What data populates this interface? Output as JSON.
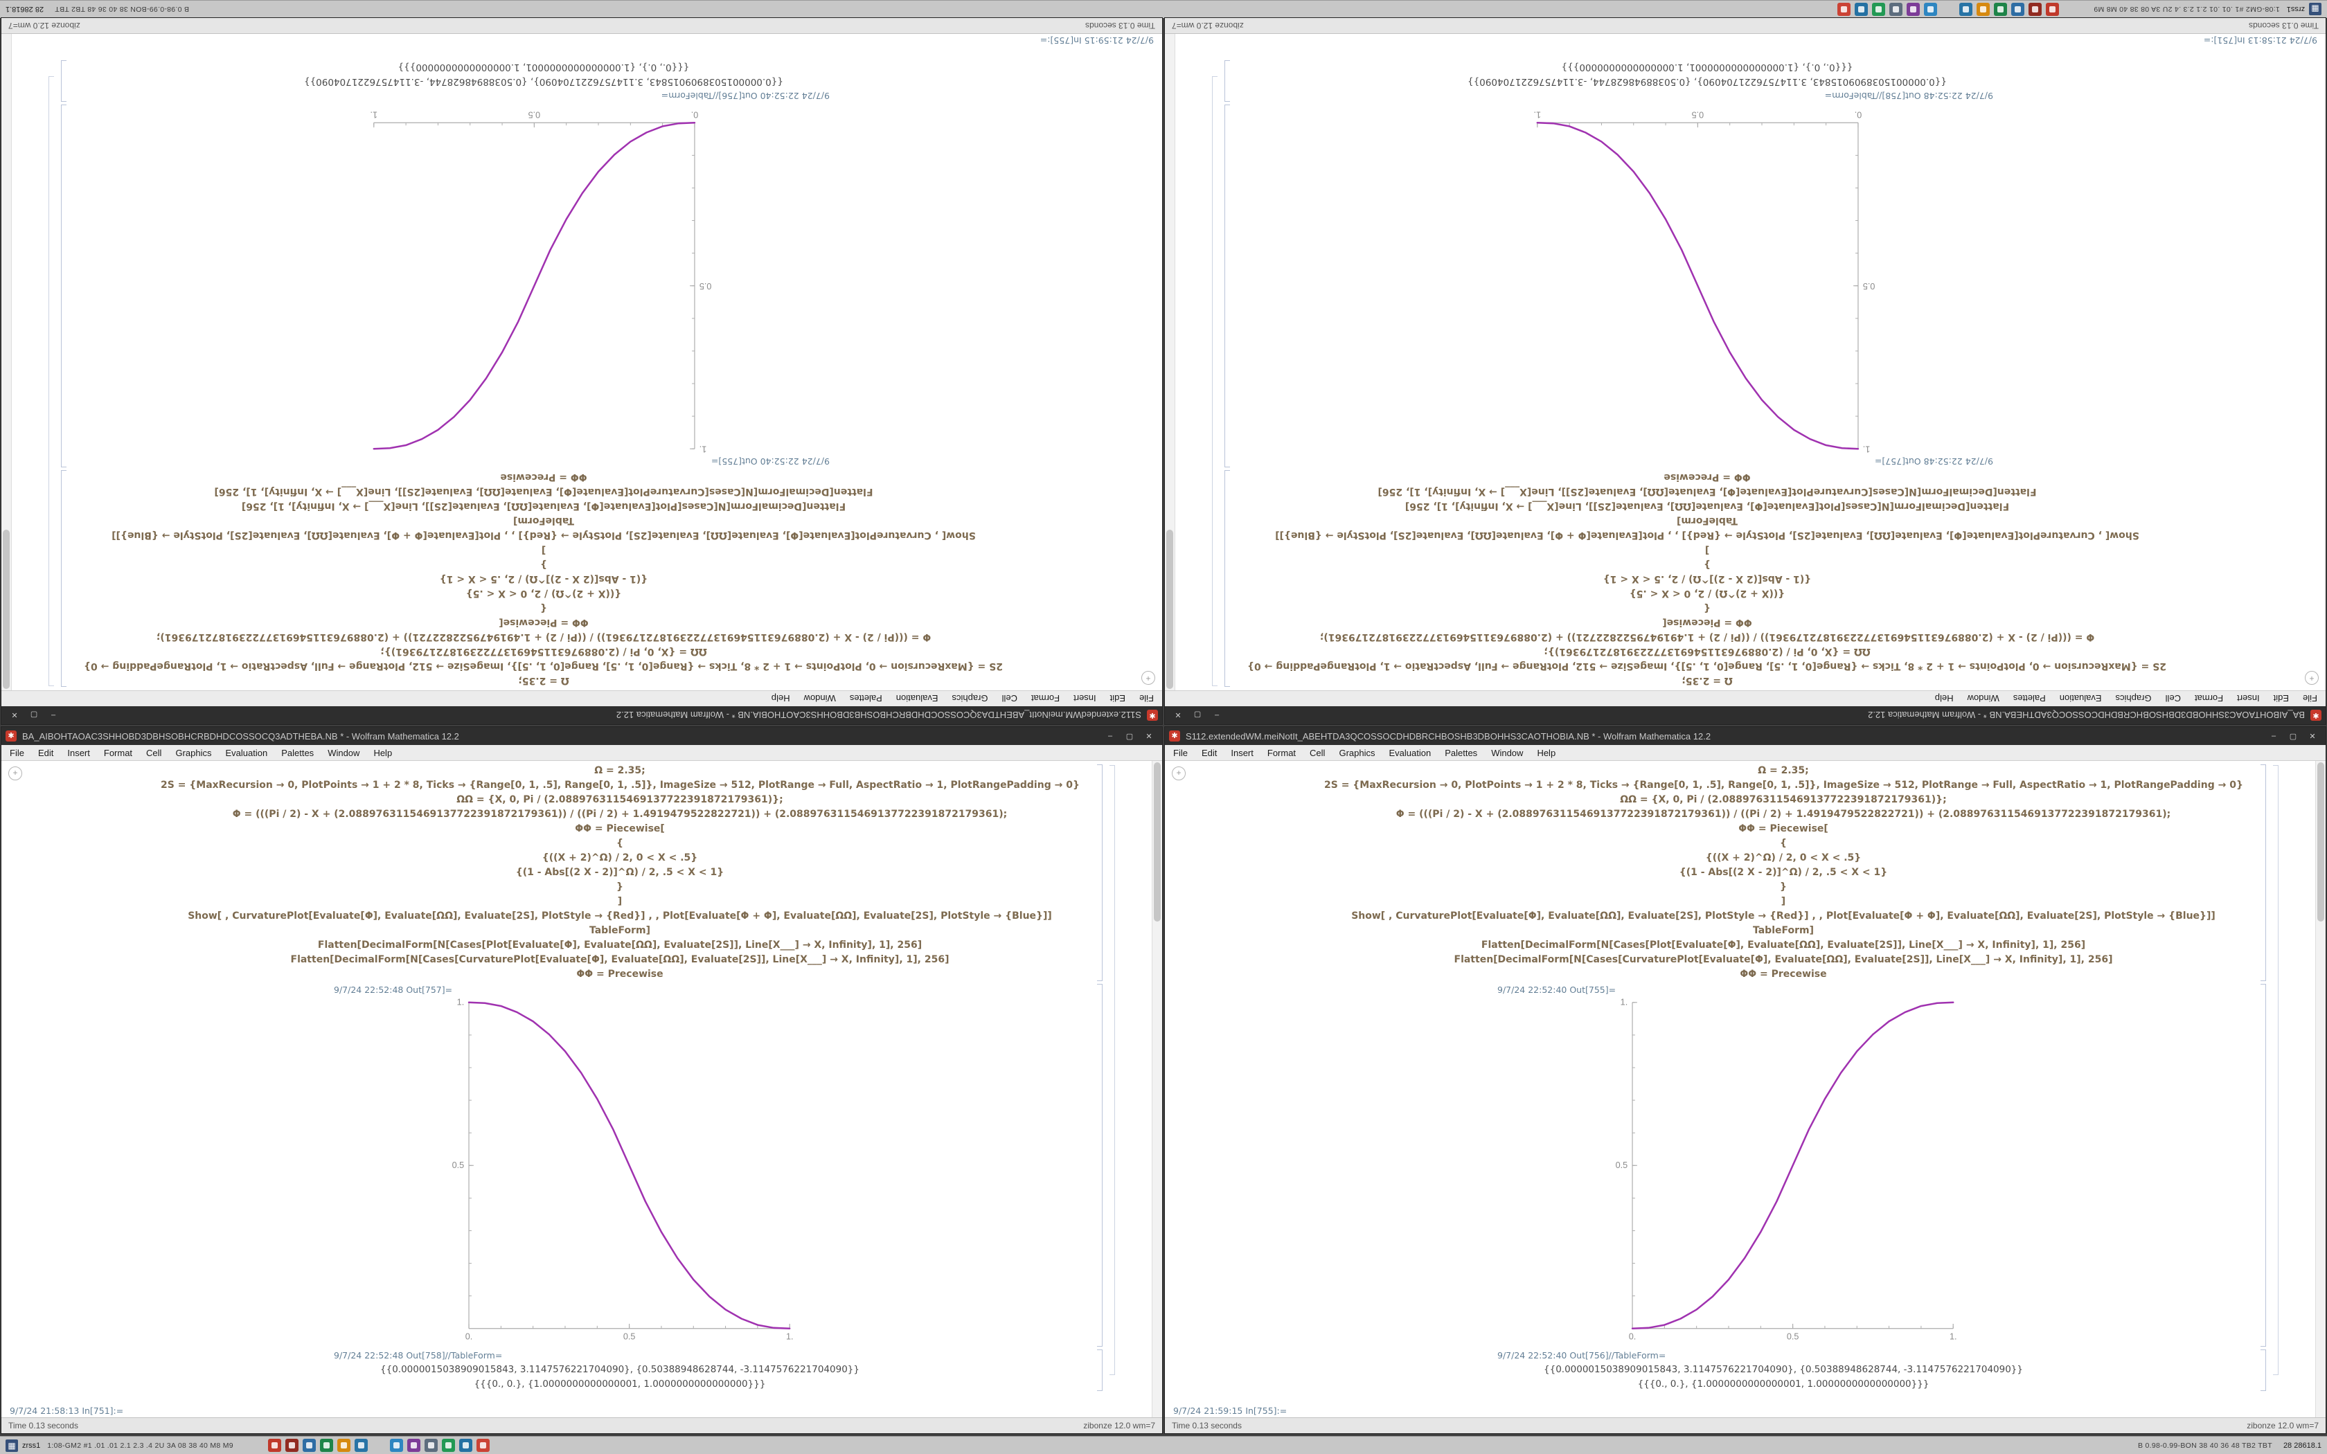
{
  "desktop": {
    "background": "#3f3f3f"
  },
  "taskbar": {
    "app_glyph": "▦",
    "left_label": "zrss1",
    "left_info": "1:08-GM2 #1 .01 .01 2.1 2.3 .4 2U 3A 08 38 40 M8 M9",
    "right_info": "B 0.98-0.99-BON 38 40 36 48 TB2 TBT",
    "clock": "28 28618.1",
    "tray1": [
      {
        "name": "tray-icon-1",
        "color": "#c0392b"
      },
      {
        "name": "tray-icon-2",
        "color": "#922b21"
      },
      {
        "name": "tray-icon-3",
        "color": "#2e6da4"
      },
      {
        "name": "tray-icon-4",
        "color": "#1e8449"
      },
      {
        "name": "tray-icon-5",
        "color": "#d68910"
      },
      {
        "name": "tray-icon-6",
        "color": "#2874a6"
      }
    ],
    "tray2": [
      {
        "name": "tray-icon-7",
        "color": "#2e86c1"
      },
      {
        "name": "tray-icon-8",
        "color": "#7d3c98"
      },
      {
        "name": "tray-icon-9",
        "color": "#5d6d7e"
      },
      {
        "name": "tray-icon-10",
        "color": "#229954"
      },
      {
        "name": "tray-icon-11",
        "color": "#2471a3"
      },
      {
        "name": "tray-icon-12",
        "color": "#cb4335"
      }
    ]
  },
  "window_chrome": {
    "menu_items": [
      "File",
      "Edit",
      "Insert",
      "Format",
      "Cell",
      "Graphics",
      "Evaluation",
      "Palettes",
      "Window",
      "Help"
    ],
    "buttons": {
      "minimize": "–",
      "maximize": "▢",
      "close": "✕"
    },
    "doc_icon_glyph": "✱",
    "status_left": "Time 0.13 seconds",
    "status_right": "zibonze 12.0 wm=7"
  },
  "notebook": {
    "corner_glyph": "+",
    "code_lines": [
      "Ω = 2.35;",
      "2S = {MaxRecursion → 0, PlotPoints → 1 + 2 * 8, Ticks → {Range[0, 1, .5], Range[0, 1, .5]}, ImageSize → 512, PlotRange → Full, AspectRatio → 1, PlotRangePadding → 0};",
      "ΩΩ = {X, 0, Pi / (2.0889763115469137722391872179361)};",
      "Φ = (((Pi / 2) - X + (2.0889763115469137722391872179361)) / ((Pi / 2) + 1.4919479522822721)) + (2.0889763115469137722391872179361);",
      "ΦΦ = Piecewise[",
      "{",
      "{((X + 2)^Ω) / 2, 0 < X < .5}",
      "{(1 - Abs[(2 X - 2)]^Ω) / 2, .5 < X < 1}",
      "}",
      "]",
      "Show[ , CurvaturePlot[Evaluate[Φ], Evaluate[ΩΩ], Evaluate[2S], PlotStyle → {Red}] , , Plot[Evaluate[Φ + Φ], Evaluate[ΩΩ], Evaluate[2S], PlotStyle → {Blue}]]",
      "TableForm]",
      "Flatten[DecimalForm[N[Cases[Plot[Evaluate[Φ], Evaluate[ΩΩ], Evaluate[2S]], Line[X___] → X, Infinity], 1], 256]",
      "Flatten[DecimalForm[N[Cases[CurvaturePlot[Evaluate[Φ], Evaluate[ΩΩ], Evaluate[2S]], Line[X___] → X, Infinity], 1], 256]",
      "ΦΦ = Precewise"
    ],
    "result_lines": [
      "{{0.0000015038909015843, 3.1147576221704090}, {0.50388948628744, -3.1147576221704090}}",
      "{{{0., 0.}, {1.0000000000000001, 1.0000000000000000}}}"
    ]
  },
  "windows": [
    {
      "id": "top-left",
      "rotated": true,
      "plot": "ascending",
      "title": "S112.extendedWM.meiNotIt_ABEHTDA3QCOSSOCDHDBRCHBOSHB3DBOHHS3CAOTHOBIA.NB * - Wolfram Mathematica 12.2",
      "out_plot_label": "9/7/24 22:52:40 Out[755]=",
      "out_table_label": "9/7/24 22:52:40 Out[756]//TableForm=",
      "trailing_label": "9/7/24 21:59:15 In[755]:="
    },
    {
      "id": "top-right",
      "rotated": true,
      "plot": "descending",
      "title": "BA_AIBOHTAOAC3SHHOBD3DBHSOBHCRBDHDCOSSOCQ3ADTHEBA.NB * - Wolfram Mathematica 12.2",
      "out_plot_label": "9/7/24 22:52:48 Out[757]=",
      "out_table_label": "9/7/24 22:52:48 Out[758]//TableForm=",
      "trailing_label": "9/7/24 21:58:13 In[751]:="
    },
    {
      "id": "bottom-left",
      "rotated": false,
      "plot": "descending",
      "title": "BA_AIBOHTAOAC3SHHOBD3DBHSOBHCRBDHDCOSSOCQ3ADTHEBA.NB * - Wolfram Mathematica 12.2",
      "out_plot_label": "9/7/24 22:52:48 Out[757]=",
      "out_table_label": "9/7/24 22:52:48 Out[758]//TableForm=",
      "trailing_label": "9/7/24 21:58:13 In[751]:="
    },
    {
      "id": "bottom-right",
      "rotated": false,
      "plot": "ascending",
      "title": "S112.extendedWM.meiNotIt_ABEHTDA3QCOSSOCDHDBRCHBOSHB3DBOHHS3CAOTHOBIA.NB * - Wolfram Mathematica 12.2",
      "out_plot_label": "9/7/24 22:52:40 Out[755]=",
      "out_table_label": "9/7/24 22:52:40 Out[756]//TableForm=",
      "trailing_label": "9/7/24 21:59:15 In[755]:="
    }
  ],
  "chart_data": {
    "type": "line",
    "title": "",
    "xlabel": "",
    "ylabel": "",
    "xlim": [
      0,
      1
    ],
    "ylim": [
      0,
      1
    ],
    "xticks": {
      "labels": [
        "0.",
        "0.5",
        "1."
      ],
      "positions": [
        0,
        0.5,
        1
      ]
    },
    "yticks": {
      "labels": [
        "0.5",
        "1."
      ],
      "positions": [
        0.5,
        1
      ]
    },
    "minor_tick_step": 0.1,
    "grid": false,
    "legend": "none",
    "curve_color": "#a032b0",
    "axis_color": "#ababab",
    "tick_label_color": "#8a8a8a",
    "series": [
      {
        "name": "ascending-sigmoid",
        "points": [
          [
            0,
            0
          ],
          [
            0.05,
            0.002
          ],
          [
            0.1,
            0.011
          ],
          [
            0.15,
            0.03
          ],
          [
            0.2,
            0.058
          ],
          [
            0.25,
            0.098
          ],
          [
            0.3,
            0.15
          ],
          [
            0.35,
            0.216
          ],
          [
            0.4,
            0.296
          ],
          [
            0.45,
            0.39
          ],
          [
            0.5,
            0.5
          ],
          [
            0.55,
            0.61
          ],
          [
            0.6,
            0.704
          ],
          [
            0.65,
            0.784
          ],
          [
            0.7,
            0.85
          ],
          [
            0.75,
            0.902
          ],
          [
            0.8,
            0.942
          ],
          [
            0.85,
            0.97
          ],
          [
            0.9,
            0.989
          ],
          [
            0.95,
            0.998
          ],
          [
            1,
            1
          ]
        ]
      },
      {
        "name": "descending-sigmoid",
        "points": [
          [
            0,
            1
          ],
          [
            0.05,
            0.998
          ],
          [
            0.1,
            0.989
          ],
          [
            0.15,
            0.97
          ],
          [
            0.2,
            0.942
          ],
          [
            0.25,
            0.902
          ],
          [
            0.3,
            0.85
          ],
          [
            0.35,
            0.784
          ],
          [
            0.4,
            0.704
          ],
          [
            0.45,
            0.61
          ],
          [
            0.5,
            0.5
          ],
          [
            0.55,
            0.39
          ],
          [
            0.6,
            0.296
          ],
          [
            0.65,
            0.216
          ],
          [
            0.7,
            0.15
          ],
          [
            0.75,
            0.098
          ],
          [
            0.8,
            0.058
          ],
          [
            0.85,
            0.03
          ],
          [
            0.9,
            0.011
          ],
          [
            0.95,
            0.002
          ],
          [
            1,
            0
          ]
        ]
      }
    ]
  }
}
